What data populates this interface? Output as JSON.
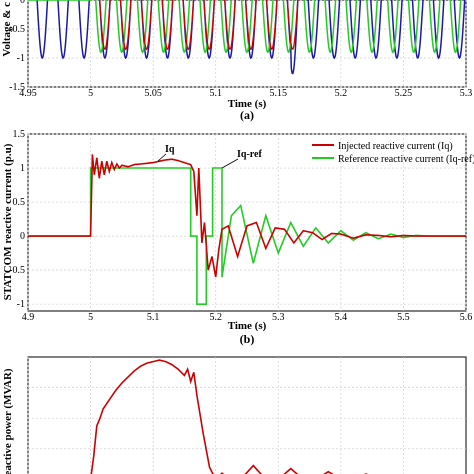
{
  "colors": {
    "red": "#cc0000",
    "green": "#22cc22",
    "blue": "#1a1aa6",
    "axis": "#000000",
    "background": "#ffffff"
  },
  "chart_data": [
    {
      "panel": "a",
      "type": "line",
      "caption": "(a)",
      "xlabel": "Time (s)",
      "ylabel": "Voltage & c",
      "xlim": [
        4.95,
        5.3
      ],
      "ylim": [
        -1.5,
        0
      ],
      "x_ticks": [
        "4.95",
        "5",
        "5.05",
        "5.1",
        "5.15",
        "5.2",
        "5.25",
        "5.3"
      ],
      "y_ticks": [
        "-1.5",
        "-1",
        "-0.5",
        "0"
      ],
      "grid": true,
      "series": [
        {
          "color": "blue",
          "description": "sinusoid, 60 Hz, amplitude ~1.0, troughs near -1.0 (dips to ~-1.27 near t=5.165)"
        },
        {
          "color": "red",
          "description": "sinusoid tracking blue, troughs ~-0.85 between t=5.0 and 5.17"
        },
        {
          "color": "green",
          "description": "sinusoid, 0 before t=5.0, troughs ~-0.9 after t=5.0"
        }
      ]
    },
    {
      "panel": "b",
      "type": "line",
      "caption": "(b)",
      "xlabel": "Time (s)",
      "ylabel": "STATCOM reactive current (p.u)",
      "xlim": [
        4.9,
        5.6
      ],
      "ylim": [
        -1.1,
        1.5
      ],
      "x_ticks": [
        "4.9",
        "5",
        "5.1",
        "5.2",
        "5.3",
        "5.4",
        "5.5",
        "5.6"
      ],
      "y_ticks": [
        "-1",
        "-0.5",
        "0",
        "0.5",
        "1",
        "1.5"
      ],
      "grid": true,
      "legend": [
        "Injected reactive current (Iq)",
        "Reference reactive current (Iq-ref)"
      ],
      "legend_position": "top-right",
      "annotations": [
        "Iq",
        "Iq-ref"
      ],
      "series": [
        {
          "name": "Injected reactive current (Iq)",
          "color": "red",
          "x": [
            4.9,
            5.0,
            5.003,
            5.006,
            5.01,
            5.014,
            5.018,
            5.022,
            5.026,
            5.03,
            5.034,
            5.038,
            5.042,
            5.046,
            5.05,
            5.06,
            5.07,
            5.08,
            5.09,
            5.1,
            5.11,
            5.12,
            5.13,
            5.14,
            5.15,
            5.16,
            5.165,
            5.17,
            5.173,
            5.178,
            5.182,
            5.188,
            5.194,
            5.2,
            5.205,
            5.21,
            5.22,
            5.235,
            5.25,
            5.265,
            5.28,
            5.295,
            5.31,
            5.325,
            5.34,
            5.355,
            5.37,
            5.385,
            5.4,
            5.42,
            5.44,
            5.46,
            5.48,
            5.5,
            5.52,
            5.54,
            5.56,
            5.58,
            5.6
          ],
          "y": [
            0.0,
            0.0,
            1.2,
            0.9,
            1.15,
            0.85,
            1.1,
            0.9,
            1.1,
            0.95,
            1.08,
            0.98,
            1.06,
            1.0,
            1.04,
            1.02,
            1.05,
            1.06,
            1.07,
            1.08,
            1.1,
            1.12,
            1.13,
            1.11,
            1.08,
            1.05,
            0.95,
            0.3,
            1.0,
            -0.1,
            0.2,
            -0.5,
            -0.3,
            -0.6,
            -0.2,
            0.1,
            0.15,
            -0.3,
            0.15,
            0.2,
            -0.18,
            0.12,
            0.1,
            -0.1,
            0.08,
            0.05,
            -0.05,
            0.04,
            0.03,
            -0.03,
            0.02,
            0.01,
            -0.01,
            0.01,
            0.0,
            0.0,
            0.0,
            0.0,
            0.0
          ]
        },
        {
          "name": "Reference reactive current (Iq-ref)",
          "color": "green",
          "x": [
            4.9,
            5.0,
            5.0,
            5.16,
            5.16,
            5.17,
            5.17,
            5.185,
            5.185,
            5.195,
            5.195,
            5.21,
            5.21,
            5.225,
            5.24,
            5.26,
            5.28,
            5.3,
            5.32,
            5.34,
            5.36,
            5.38,
            5.4,
            5.42,
            5.44,
            5.46,
            5.48,
            5.5,
            5.52,
            5.54,
            5.56,
            5.58,
            5.6
          ],
          "y": [
            0.0,
            0.0,
            1.0,
            1.0,
            0.0,
            0.0,
            -1.0,
            -1.0,
            0.0,
            0.0,
            1.0,
            1.0,
            -0.6,
            0.3,
            0.45,
            -0.4,
            0.3,
            -0.25,
            0.2,
            -0.15,
            0.12,
            -0.1,
            0.08,
            -0.06,
            0.05,
            -0.04,
            0.03,
            -0.02,
            0.01,
            0.0,
            0.0,
            0.0,
            0.0
          ]
        }
      ]
    },
    {
      "panel": "c",
      "type": "line",
      "ylabel": "eactive power (MVAR)",
      "xlim": [
        4.9,
        5.6
      ],
      "ylim": [
        -5,
        80
      ],
      "grid": true,
      "series": [
        {
          "color": "red",
          "x": [
            4.9,
            5.0,
            5.005,
            5.01,
            5.015,
            5.02,
            5.03,
            5.04,
            5.05,
            5.06,
            5.07,
            5.08,
            5.09,
            5.1,
            5.11,
            5.12,
            5.13,
            5.14,
            5.15,
            5.155,
            5.16,
            5.165,
            5.17,
            5.18,
            5.19,
            5.2,
            5.21,
            5.22,
            5.24,
            5.26,
            5.28,
            5.3,
            5.32,
            5.34,
            5.36,
            5.38,
            5.4,
            5.42,
            5.44,
            5.46,
            5.48,
            5.5,
            5.52,
            5.54,
            5.56,
            5.58,
            5.6
          ],
          "y": [
            0.0,
            0.0,
            15.0,
            35.0,
            40.0,
            46.0,
            52.0,
            58.0,
            63.0,
            67.0,
            71.0,
            74.0,
            76.0,
            77.0,
            78.0,
            77.0,
            75.0,
            72.0,
            68.0,
            72.0,
            64.0,
            70.0,
            55.0,
            30.0,
            8.0,
            0.0,
            4.0,
            0.5,
            0.0,
            9.0,
            0.0,
            0.0,
            7.0,
            0.0,
            0.0,
            5.0,
            0.0,
            0.0,
            3.5,
            0.0,
            0.0,
            2.5,
            0.0,
            0.0,
            1.5,
            0.0,
            0.0
          ]
        }
      ]
    }
  ]
}
